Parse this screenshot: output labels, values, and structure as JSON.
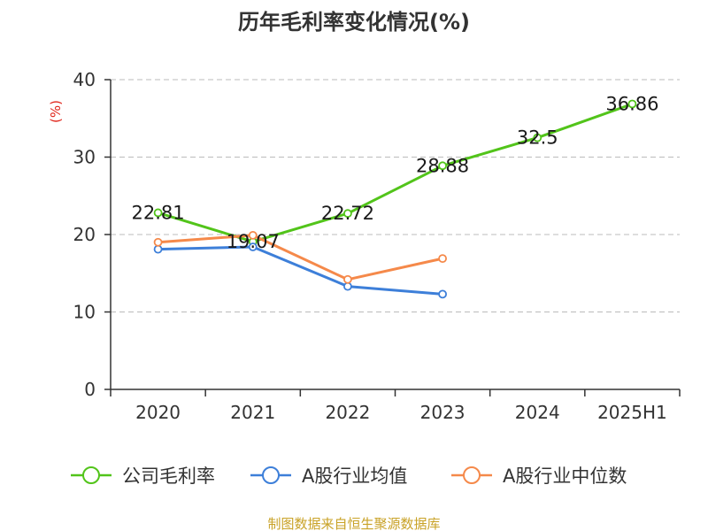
{
  "chart_data": {
    "type": "line",
    "title": "历年毛利率变化情况(%)",
    "ylabel": "(%)",
    "categories": [
      "2020",
      "2021",
      "2022",
      "2023",
      "2024",
      "2025H1"
    ],
    "ylim": [
      0,
      40
    ],
    "yticks": [
      0,
      10,
      20,
      30,
      40
    ],
    "grid": true,
    "legend_position": "bottom",
    "series": [
      {
        "name": "公司毛利率",
        "color": "#52c41a",
        "values": [
          22.81,
          19.07,
          22.72,
          28.88,
          32.5,
          36.86
        ],
        "labels": [
          "22.81",
          "19.07",
          "22.72",
          "28.88",
          "32.5",
          "36.86"
        ]
      },
      {
        "name": "A股行业均值",
        "color": "#3d7fd9",
        "values": [
          18.1,
          18.4,
          13.3,
          12.3,
          null,
          null
        ]
      },
      {
        "name": "A股行业中位数",
        "color": "#f5894a",
        "values": [
          19.0,
          19.9,
          14.2,
          16.9,
          null,
          null
        ]
      }
    ]
  },
  "source": "制图数据来自恒生聚源数据库"
}
